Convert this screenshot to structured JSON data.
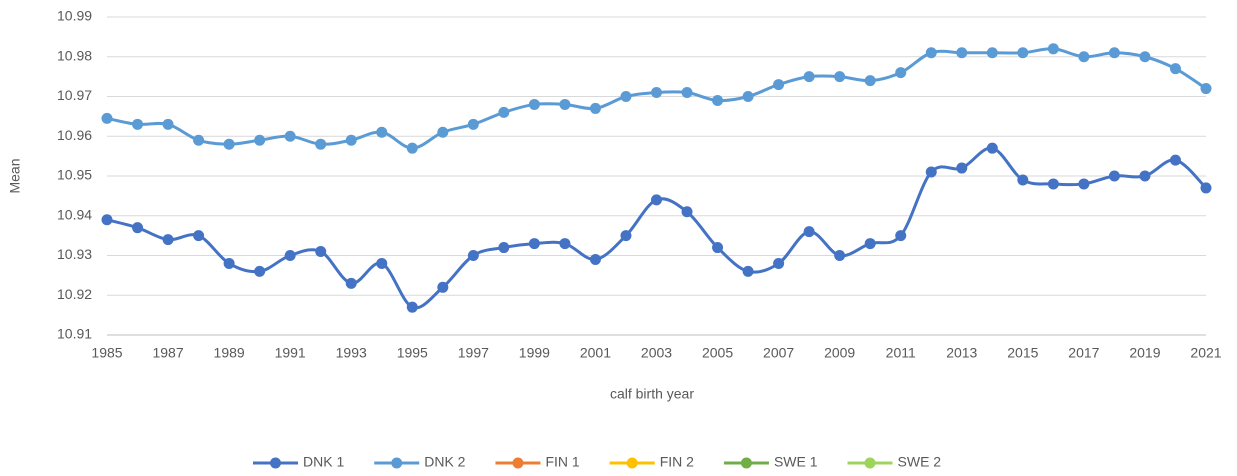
{
  "chart_data": {
    "type": "line",
    "x_label": "calf birth year",
    "y_label": "Mean",
    "x": [
      1985,
      1986,
      1987,
      1988,
      1989,
      1990,
      1991,
      1992,
      1993,
      1994,
      1995,
      1996,
      1997,
      1998,
      1999,
      2000,
      2001,
      2002,
      2003,
      2004,
      2005,
      2006,
      2007,
      2008,
      2009,
      2010,
      2011,
      2012,
      2013,
      2014,
      2015,
      2016,
      2017,
      2018,
      2019,
      2020,
      2021
    ],
    "xlim": [
      1985,
      2021
    ],
    "xticks": [
      1985,
      1987,
      1989,
      1991,
      1993,
      1995,
      1997,
      1999,
      2001,
      2003,
      2005,
      2007,
      2009,
      2011,
      2013,
      2015,
      2017,
      2019,
      2021
    ],
    "ylim": [
      10.91,
      10.99
    ],
    "yticks": [
      10.91,
      10.92,
      10.93,
      10.94,
      10.95,
      10.96,
      10.97,
      10.98,
      10.99
    ],
    "grid": true,
    "legend": "bottom",
    "smooth": true,
    "series": [
      {
        "name": "DNK 1",
        "color": "#4472c4",
        "values": [
          10.939,
          10.937,
          10.934,
          10.935,
          10.928,
          10.926,
          10.93,
          10.931,
          10.923,
          10.928,
          10.917,
          10.922,
          10.93,
          10.932,
          10.933,
          10.933,
          10.929,
          10.935,
          10.944,
          10.941,
          10.932,
          10.926,
          10.928,
          10.936,
          10.93,
          10.933,
          10.935,
          10.951,
          10.952,
          10.957,
          10.949,
          10.948,
          10.948,
          10.95,
          10.95,
          10.954,
          10.947
        ]
      },
      {
        "name": "DNK 2",
        "color": "#5b9bd5",
        "values": [
          10.9645,
          10.963,
          10.963,
          10.959,
          10.958,
          10.959,
          10.96,
          10.958,
          10.959,
          10.961,
          10.957,
          10.961,
          10.963,
          10.966,
          10.968,
          10.968,
          10.967,
          10.97,
          10.971,
          10.971,
          10.969,
          10.97,
          10.973,
          10.975,
          10.975,
          10.974,
          10.976,
          10.981,
          10.981,
          10.981,
          10.981,
          10.982,
          10.98,
          10.981,
          10.98,
          10.977,
          10.972
        ]
      },
      {
        "name": "FIN 1",
        "color": "#ed7d31",
        "values": [
          null,
          null,
          null,
          null,
          null,
          null,
          null,
          null,
          null,
          null,
          null,
          null,
          null,
          null,
          null,
          null,
          null,
          null,
          null,
          null,
          null,
          null,
          null,
          null,
          null,
          null,
          null,
          null,
          null,
          null,
          null,
          null,
          null,
          null,
          null,
          null,
          null
        ]
      },
      {
        "name": "FIN 2",
        "color": "#ffc000",
        "values": [
          null,
          null,
          null,
          null,
          null,
          null,
          null,
          null,
          null,
          null,
          null,
          null,
          null,
          null,
          null,
          null,
          null,
          null,
          null,
          null,
          null,
          null,
          null,
          null,
          null,
          null,
          null,
          null,
          null,
          null,
          null,
          null,
          null,
          null,
          null,
          null,
          null
        ]
      },
      {
        "name": "SWE 1",
        "color": "#70ad47",
        "values": [
          null,
          null,
          null,
          null,
          null,
          null,
          null,
          null,
          null,
          null,
          null,
          null,
          null,
          null,
          null,
          null,
          null,
          null,
          null,
          null,
          null,
          null,
          null,
          null,
          null,
          null,
          null,
          null,
          null,
          null,
          null,
          null,
          null,
          null,
          null,
          null,
          null
        ]
      },
      {
        "name": "SWE 2",
        "color": "#9dd55c",
        "values": [
          null,
          null,
          null,
          null,
          null,
          null,
          null,
          null,
          null,
          null,
          null,
          null,
          null,
          null,
          null,
          null,
          null,
          null,
          null,
          null,
          null,
          null,
          null,
          null,
          null,
          null,
          null,
          null,
          null,
          null,
          null,
          null,
          null,
          null,
          null,
          null,
          null
        ]
      }
    ]
  }
}
